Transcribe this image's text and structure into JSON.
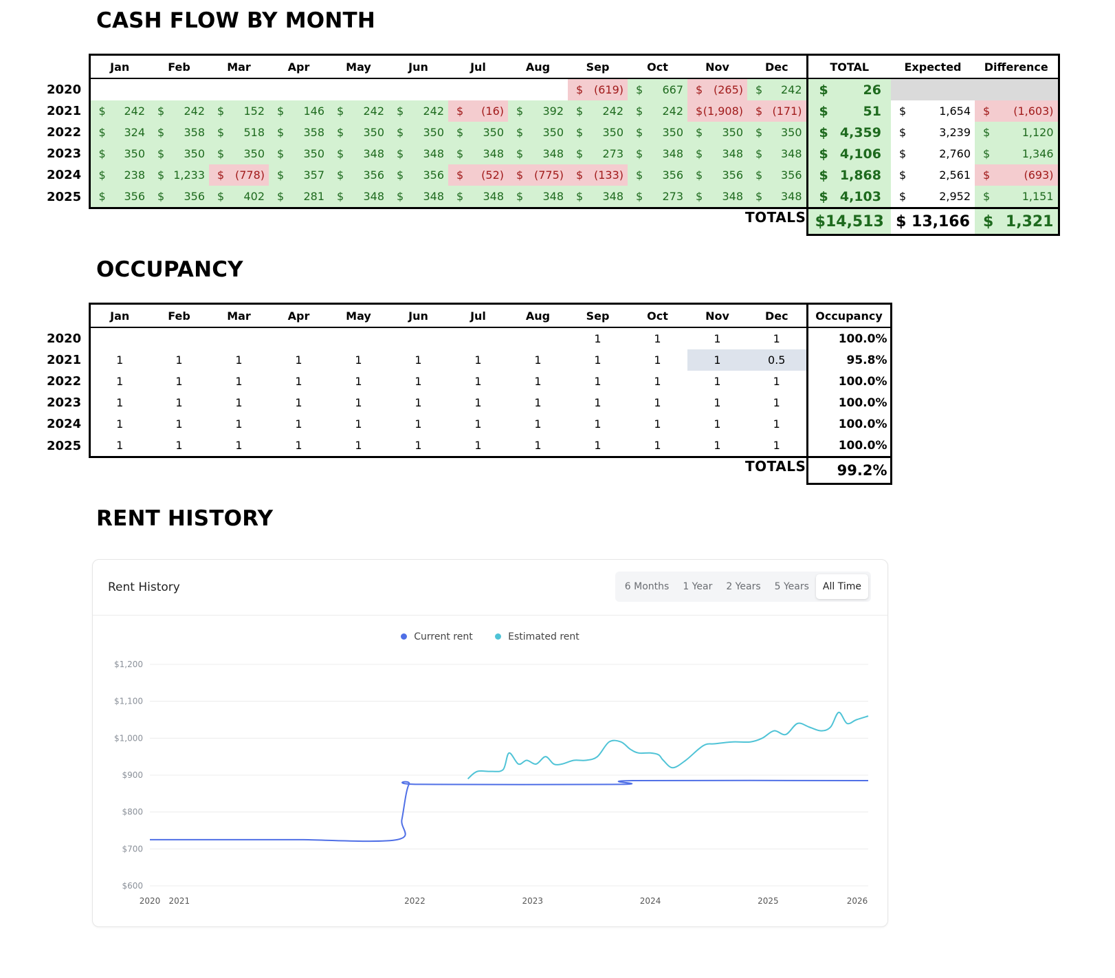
{
  "cashflow": {
    "title": "CASH FLOW BY MONTH",
    "months": [
      "Jan",
      "Feb",
      "Mar",
      "Apr",
      "May",
      "Jun",
      "Jul",
      "Aug",
      "Sep",
      "Oct",
      "Nov",
      "Dec"
    ],
    "extra_headers": [
      "TOTAL",
      "Expected",
      "Difference"
    ],
    "rows": [
      {
        "year": "2020",
        "cells": [
          null,
          null,
          null,
          null,
          null,
          null,
          null,
          null,
          "(619)",
          "667",
          "(265)",
          "242"
        ],
        "total": "26",
        "expected": "",
        "difference": ""
      },
      {
        "year": "2021",
        "cells": [
          "242",
          "242",
          "152",
          "146",
          "242",
          "242",
          "(16)",
          "392",
          "242",
          "242",
          "(1,908)",
          "(171)"
        ],
        "total": "51",
        "expected": "1,654",
        "difference": "(1,603)"
      },
      {
        "year": "2022",
        "cells": [
          "324",
          "358",
          "518",
          "358",
          "350",
          "350",
          "350",
          "350",
          "350",
          "350",
          "350",
          "350"
        ],
        "total": "4,359",
        "expected": "3,239",
        "difference": "1,120"
      },
      {
        "year": "2023",
        "cells": [
          "350",
          "350",
          "350",
          "350",
          "348",
          "348",
          "348",
          "348",
          "273",
          "348",
          "348",
          "348"
        ],
        "total": "4,106",
        "expected": "2,760",
        "difference": "1,346"
      },
      {
        "year": "2024",
        "cells": [
          "238",
          "1,233",
          "(778)",
          "357",
          "356",
          "356",
          "(52)",
          "(775)",
          "(133)",
          "356",
          "356",
          "356"
        ],
        "total": "1,868",
        "expected": "2,561",
        "difference": "(693)"
      },
      {
        "year": "2025",
        "cells": [
          "356",
          "356",
          "402",
          "281",
          "348",
          "348",
          "348",
          "348",
          "348",
          "273",
          "348",
          "348"
        ],
        "total": "4,103",
        "expected": "2,952",
        "difference": "1,151"
      }
    ],
    "totals_label": "TOTALS",
    "grand_total": "$14,513",
    "grand_expected": "$ 13,166",
    "grand_difference_sym": "$",
    "grand_difference": "1,321",
    "currency": "$"
  },
  "occupancy": {
    "title": "OCCUPANCY",
    "months": [
      "Jan",
      "Feb",
      "Mar",
      "Apr",
      "May",
      "Jun",
      "Jul",
      "Aug",
      "Sep",
      "Oct",
      "Nov",
      "Dec"
    ],
    "extra_header": "Occupancy",
    "rows": [
      {
        "year": "2020",
        "cells": [
          "",
          "",
          "",
          "",
          "",
          "",
          "",
          "",
          "1",
          "1",
          "1",
          "1"
        ],
        "pct": "100.0%"
      },
      {
        "year": "2021",
        "cells": [
          "1",
          "1",
          "1",
          "1",
          "1",
          "1",
          "1",
          "1",
          "1",
          "1",
          "1",
          "0.5"
        ],
        "pct": "95.8%"
      },
      {
        "year": "2022",
        "cells": [
          "1",
          "1",
          "1",
          "1",
          "1",
          "1",
          "1",
          "1",
          "1",
          "1",
          "1",
          "1"
        ],
        "pct": "100.0%"
      },
      {
        "year": "2023",
        "cells": [
          "1",
          "1",
          "1",
          "1",
          "1",
          "1",
          "1",
          "1",
          "1",
          "1",
          "1",
          "1"
        ],
        "pct": "100.0%"
      },
      {
        "year": "2024",
        "cells": [
          "1",
          "1",
          "1",
          "1",
          "1",
          "1",
          "1",
          "1",
          "1",
          "1",
          "1",
          "1"
        ],
        "pct": "100.0%"
      },
      {
        "year": "2025",
        "cells": [
          "1",
          "1",
          "1",
          "1",
          "1",
          "1",
          "1",
          "1",
          "1",
          "1",
          "1",
          "1"
        ],
        "pct": "100.0%"
      }
    ],
    "totals_label": "TOTALS",
    "total_pct": "99.2%"
  },
  "rent": {
    "section_title": "RENT HISTORY",
    "card_title": "Rent History",
    "ranges": [
      "6 Months",
      "1 Year",
      "2 Years",
      "5 Years",
      "All Time"
    ],
    "active_range": "All Time"
  },
  "colors": {
    "current": "#4f6fe6",
    "estimated": "#4fc3d6"
  },
  "chart_data": {
    "type": "line",
    "title": "Rent History",
    "legend": [
      "Current rent",
      "Estimated rent"
    ],
    "ylim": [
      600,
      1200
    ],
    "yticks": [
      1200,
      1100,
      1000,
      900,
      800,
      700,
      600
    ],
    "ytick_labels": [
      "$1,200",
      "$1,100",
      "$1,000",
      "$900",
      "$800",
      "$700",
      "$600"
    ],
    "xlim": [
      2020.0,
      2026.1
    ],
    "xticks": [
      2020.0,
      2020.25,
      2022.25,
      2023.25,
      2024.25,
      2025.25,
      2026.25
    ],
    "xtick_labels": [
      "2020",
      "2021",
      "2022",
      "2023",
      "2024",
      "2025",
      "2026"
    ],
    "series": [
      {
        "name": "Current rent",
        "x": [
          2020.0,
          2021.2,
          2021.3,
          2022.1,
          2022.14,
          2022.2,
          2022.3,
          2024.0,
          2024.1,
          2026.1
        ],
        "y": [
          725,
          725,
          725,
          725,
          780,
          875,
          875,
          875,
          885,
          885
        ]
      },
      {
        "name": "Estimated rent",
        "x": [
          2022.7,
          2022.78,
          2022.9,
          2023.0,
          2023.05,
          2023.13,
          2023.2,
          2023.28,
          2023.36,
          2023.43,
          2023.5,
          2023.6,
          2023.7,
          2023.8,
          2023.9,
          2024.0,
          2024.08,
          2024.15,
          2024.25,
          2024.32,
          2024.36,
          2024.44,
          2024.55,
          2024.7,
          2024.8,
          2024.95,
          2025.1,
          2025.2,
          2025.3,
          2025.4,
          2025.5,
          2025.6,
          2025.7,
          2025.78,
          2025.85,
          2025.92,
          2026.0,
          2026.1
        ],
        "y": [
          890,
          910,
          910,
          915,
          960,
          930,
          940,
          930,
          950,
          930,
          930,
          940,
          940,
          950,
          990,
          990,
          970,
          960,
          960,
          955,
          940,
          920,
          940,
          980,
          985,
          990,
          990,
          1000,
          1020,
          1010,
          1040,
          1030,
          1020,
          1030,
          1070,
          1040,
          1050,
          1060
        ]
      }
    ]
  }
}
